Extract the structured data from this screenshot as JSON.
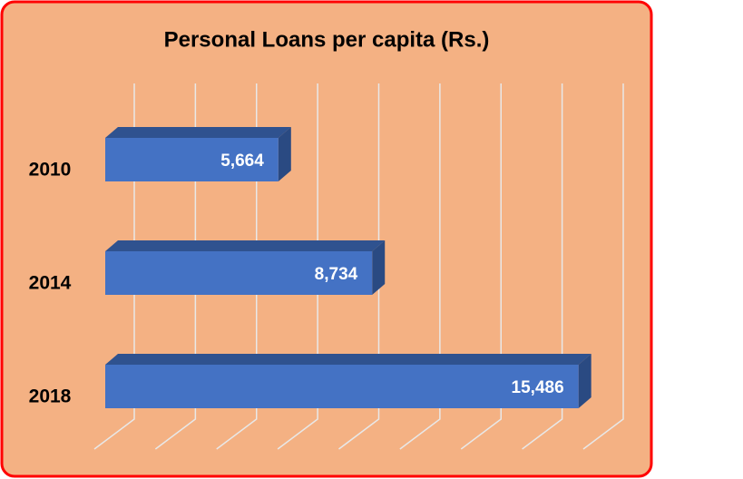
{
  "chart_data": {
    "type": "bar3d_horizontal",
    "title": "Personal Loans per capita (Rs.)",
    "categories": [
      "2010",
      "2014",
      "2018"
    ],
    "values": [
      5664,
      8734,
      15486
    ],
    "value_labels": [
      "5,664",
      "8,734",
      "15,486"
    ],
    "color": "#4472c4",
    "xlim": [
      0,
      16000
    ],
    "xticks": [
      0,
      2000,
      4000,
      6000,
      8000,
      10000,
      12000,
      14000,
      16000
    ],
    "grid": true
  }
}
